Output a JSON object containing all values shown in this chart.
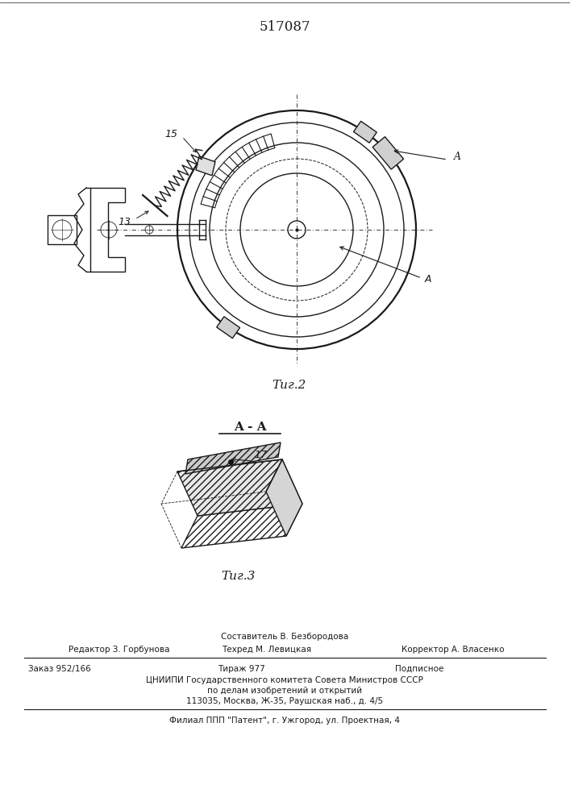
{
  "title": "517087",
  "fig2_caption": "Τиг.2",
  "fig3_caption": "Τиг.3",
  "section_label": "A - A",
  "label_15": "15",
  "label_13": "13",
  "label_17": "17",
  "label_A": "A",
  "footer_sestavitel": "Составитель В. Безбородова",
  "footer_line1_left": "Редактор З. Горбунова",
  "footer_line1_center": "Техред М. Левицкая",
  "footer_line1_right": "Корректор А. Власенко",
  "footer_zakaz": "Заказ 952/166",
  "footer_tirazh": "Тираж 977",
  "footer_podpisnoe": "Подписное",
  "footer_cniipi": "ЦНИИПИ Государственного комитета Совета Министров СССР",
  "footer_po_delam": "по делам изобретений и открытий",
  "footer_address": "113035, Москва, Ж-35, Раушская наб., д. 4/5",
  "footer_filial": "Филиал ППП \"Патент\", г. Ужгород, ул. Проектная, 4",
  "bg_color": "#ffffff",
  "line_color": "#1a1a1a"
}
